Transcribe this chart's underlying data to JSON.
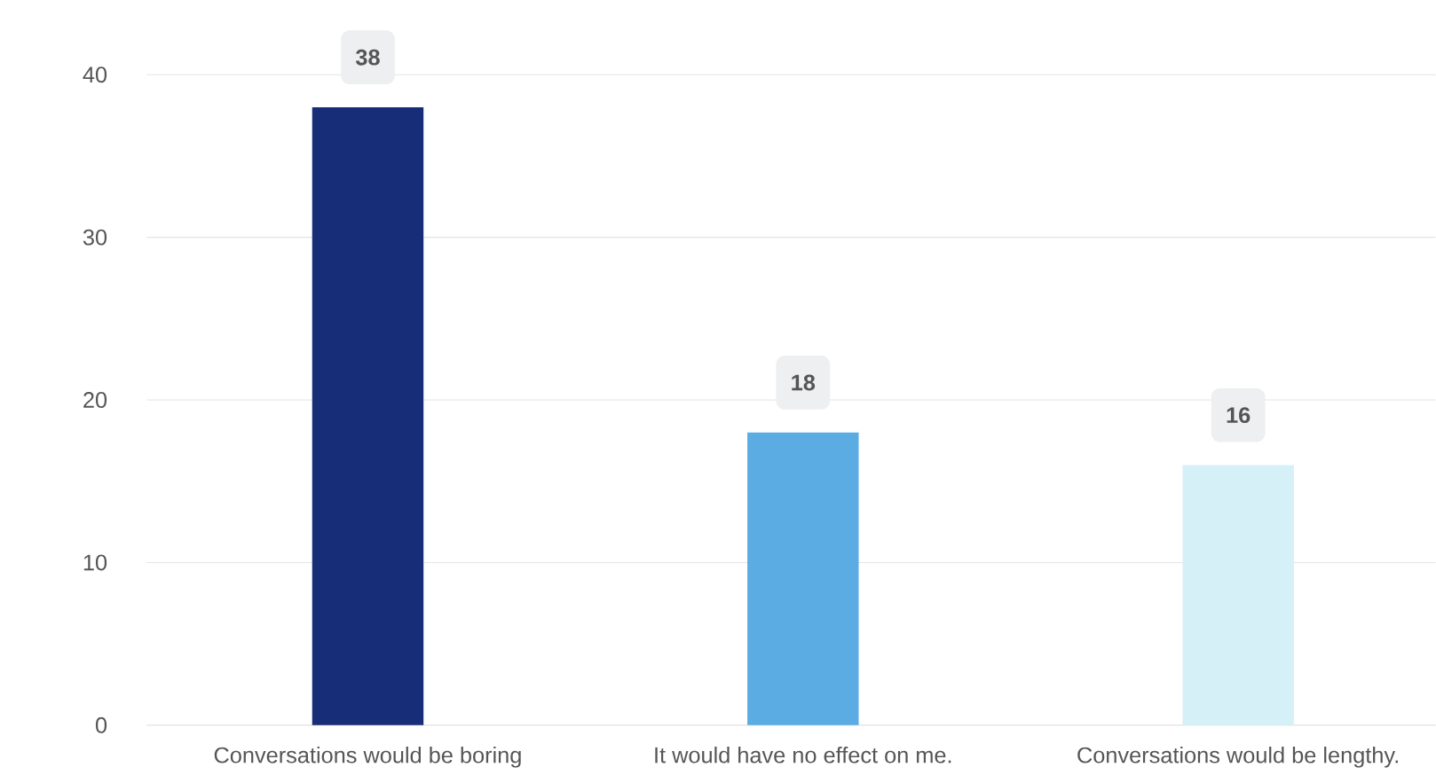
{
  "chart_data": {
    "type": "bar",
    "categories": [
      "Conversations would be boring",
      "It would have no effect on me.",
      "Conversations would be lengthy."
    ],
    "values": [
      38,
      18,
      16
    ],
    "colors": [
      "#172d78",
      "#5aace2",
      "#d6f0f8"
    ],
    "ylim": [
      0,
      40
    ],
    "yticks": [
      0,
      10,
      20,
      30,
      40
    ],
    "grid": "y",
    "data_labels": true
  }
}
